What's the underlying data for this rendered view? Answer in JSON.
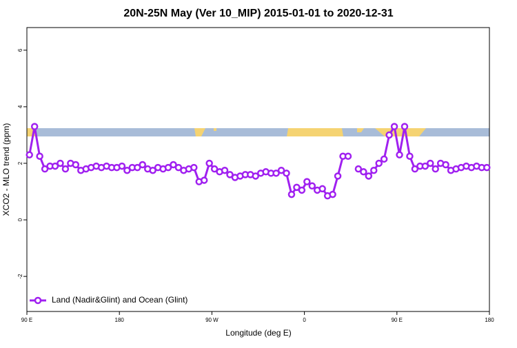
{
  "chart_data": {
    "type": "line",
    "title": "20N-25N May (Ver 10_MIP)   2015-01-01 to 2020-12-31",
    "x_label": "Longitude (deg E)",
    "y_label": "XCO2 - MLO trend (ppm)",
    "xlim": [
      90,
      540
    ],
    "ylim": [
      -3.24,
      6.8
    ],
    "xticks": [
      {
        "value": 90,
        "label": "90 E"
      },
      180,
      {
        "value": 270,
        "label": "90 W"
      },
      {
        "value": 360,
        "label": "0"
      },
      {
        "value": 450,
        "label": "90 E"
      },
      {
        "value": 540,
        "label": "180"
      }
    ],
    "yticks": [
      -2,
      0,
      2,
      4,
      6
    ],
    "legend_position": "bottom-left",
    "x": [
      92.5,
      97.5,
      102.5,
      107.5,
      112.5,
      117.5,
      122.5,
      127.5,
      132.5,
      137.5,
      142.5,
      147.5,
      152.5,
      157.5,
      162.5,
      167.5,
      172.5,
      177.5,
      182.5,
      187.5,
      192.5,
      197.5,
      202.5,
      207.5,
      212.5,
      217.5,
      222.5,
      227.5,
      232.5,
      237.5,
      242.5,
      247.5,
      252.5,
      257.5,
      262.5,
      267.5,
      272.5,
      277.5,
      282.5,
      287.5,
      292.5,
      297.5,
      302.5,
      307.5,
      312.5,
      317.5,
      322.5,
      327.5,
      332.5,
      337.5,
      342.5,
      347.5,
      352.5,
      357.5,
      362.5,
      367.5,
      372.5,
      377.5,
      382.5,
      387.5,
      392.5,
      397.5,
      402.5,
      407.5,
      412.5,
      417.5,
      422.5,
      427.5,
      432.5,
      437.5,
      442.5,
      447.5,
      452.5,
      457.5,
      462.5,
      467.5,
      472.5,
      477.5,
      482.5,
      487.5,
      492.5,
      497.5,
      502.5,
      507.5,
      512.5,
      517.5,
      522.5,
      527.5,
      532.5,
      537.5
    ],
    "series": [
      {
        "name": "Land (Nadir&Glint) and Ocean (Glint)",
        "color": "#a020f0",
        "values": [
          2.3,
          3.3,
          2.25,
          1.8,
          1.9,
          1.9,
          2.0,
          1.8,
          2.0,
          1.95,
          1.75,
          1.8,
          1.85,
          1.9,
          1.85,
          1.9,
          1.85,
          1.85,
          1.9,
          1.75,
          1.85,
          1.85,
          1.95,
          1.8,
          1.75,
          1.85,
          1.8,
          1.85,
          1.95,
          1.85,
          1.75,
          1.8,
          1.85,
          1.35,
          1.4,
          2.0,
          1.8,
          1.7,
          1.75,
          1.6,
          1.5,
          1.55,
          1.6,
          1.6,
          1.55,
          1.65,
          1.7,
          1.65,
          1.65,
          1.75,
          1.65,
          0.9,
          1.15,
          1.05,
          1.35,
          1.2,
          1.05,
          1.1,
          0.85,
          0.9,
          1.55,
          2.25,
          2.25,
          null,
          1.8,
          1.7,
          1.55,
          1.75,
          2.0,
          2.15,
          3.0,
          3.3,
          2.3,
          3.3,
          2.25,
          1.8,
          1.9,
          1.9,
          2.0,
          1.8,
          2.0,
          1.95,
          1.75,
          1.8,
          1.85,
          1.9,
          1.85,
          1.9,
          1.85,
          1.85
        ]
      }
    ]
  }
}
